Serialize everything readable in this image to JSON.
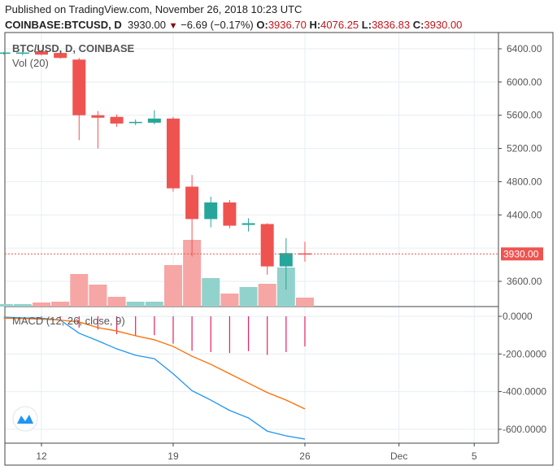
{
  "header": {
    "published": "Published on TradingView.com, November 26, 2018 10:23 UTC",
    "symbol": "COINBASE:BTCUSD, D",
    "last": "3930.00",
    "change": "−6.69 (−0.17%)",
    "o_label": "O:",
    "o": "3936.70",
    "h_label": "H:",
    "h": "4076.25",
    "l_label": "L:",
    "l": "3836.83",
    "c_label": "C:",
    "c": "3930.00"
  },
  "legend": {
    "main": "BTC/USD, D, COINBASE",
    "vol": "Vol (20)",
    "macd": "MACD (12, 26, close, 9)"
  },
  "colors": {
    "up": "#26a69a",
    "down": "#ef5350",
    "vol_up": "#92d2cc",
    "vol_down": "#f5a6a5",
    "macd": "#2196f3",
    "signal": "#ff6d00",
    "hist": "#e91e63"
  },
  "chart_data": [
    {
      "type": "candlestick",
      "title": "BTC/USD, D, COINBASE",
      "ylim": [
        3300,
        6500
      ],
      "yticks": [
        "6400.00",
        "6000.00",
        "5600.00",
        "5200.00",
        "4800.00",
        "4400.00",
        "4000.00",
        "3600.00"
      ],
      "last_price_label": "3930.00",
      "dates": [
        "Nov 10",
        "Nov 11",
        "Nov 12",
        "Nov 13",
        "Nov 14",
        "Nov 15",
        "Nov 16",
        "Nov 17",
        "Nov 18",
        "Nov 19",
        "Nov 20",
        "Nov 21",
        "Nov 22",
        "Nov 23",
        "Nov 24",
        "Nov 25",
        "Nov 26"
      ],
      "day": [
        10,
        11,
        12,
        13,
        14,
        15,
        16,
        17,
        18,
        19,
        20,
        21,
        22,
        23,
        24,
        25,
        26
      ],
      "open": [
        6345,
        6350,
        6370,
        6350,
        6270,
        5600,
        5580,
        5520,
        5510,
        5560,
        4740,
        4350,
        4550,
        4280,
        4290,
        3780,
        3936.7
      ],
      "high": [
        6360,
        6400,
        6390,
        6380,
        6290,
        5650,
        5610,
        5550,
        5660,
        5580,
        4880,
        4620,
        4580,
        4360,
        4300,
        4120,
        4076.25
      ],
      "low": [
        6330,
        6320,
        6320,
        6280,
        5300,
        5200,
        5460,
        5480,
        5490,
        4680,
        3900,
        4250,
        4240,
        4200,
        3680,
        3500,
        3836.83
      ],
      "close": [
        6355,
        6355,
        6330,
        6290,
        5600,
        5570,
        5500,
        5520,
        5560,
        4720,
        4350,
        4550,
        4270,
        4300,
        3780,
        3940,
        3930
      ],
      "volume_relative": [
        3,
        3,
        5,
        6,
        40,
        27,
        12,
        6,
        6,
        51,
        82,
        35,
        16,
        24,
        28,
        48,
        11
      ]
    },
    {
      "type": "line",
      "title": "MACD (12, 26, close, 9)",
      "ylim": [
        -680,
        30
      ],
      "yticks": [
        "0.0000",
        "-200.0000",
        "-400.0000",
        "-600.0000"
      ],
      "day": [
        10,
        11,
        12,
        13,
        14,
        15,
        16,
        17,
        18,
        19,
        20,
        21,
        22,
        23,
        24,
        25,
        26
      ],
      "series": [
        {
          "name": "macd",
          "values": [
            -5,
            -8,
            -10,
            -20,
            -90,
            -130,
            -173,
            -207,
            -225,
            -305,
            -395,
            -445,
            -500,
            -540,
            -610,
            -635,
            -652
          ]
        },
        {
          "name": "signal",
          "values": [
            -10,
            -12,
            -15,
            -20,
            -30,
            -60,
            -78,
            -103,
            -125,
            -160,
            -212,
            -255,
            -305,
            -355,
            -405,
            -445,
            -492
          ]
        }
      ],
      "histogram": [
        0,
        0,
        -5,
        -10,
        -60,
        -70,
        -95,
        -104,
        -100,
        -145,
        -183,
        -190,
        -195,
        -185,
        -205,
        -190,
        -160
      ]
    }
  ],
  "xaxis": {
    "ticks": [
      {
        "label": "12",
        "day": 12
      },
      {
        "label": "19",
        "day": 19
      },
      {
        "label": "26",
        "day": 26
      },
      {
        "label": "Dec",
        "day": 31
      },
      {
        "label": "5",
        "day": 35
      }
    ]
  }
}
